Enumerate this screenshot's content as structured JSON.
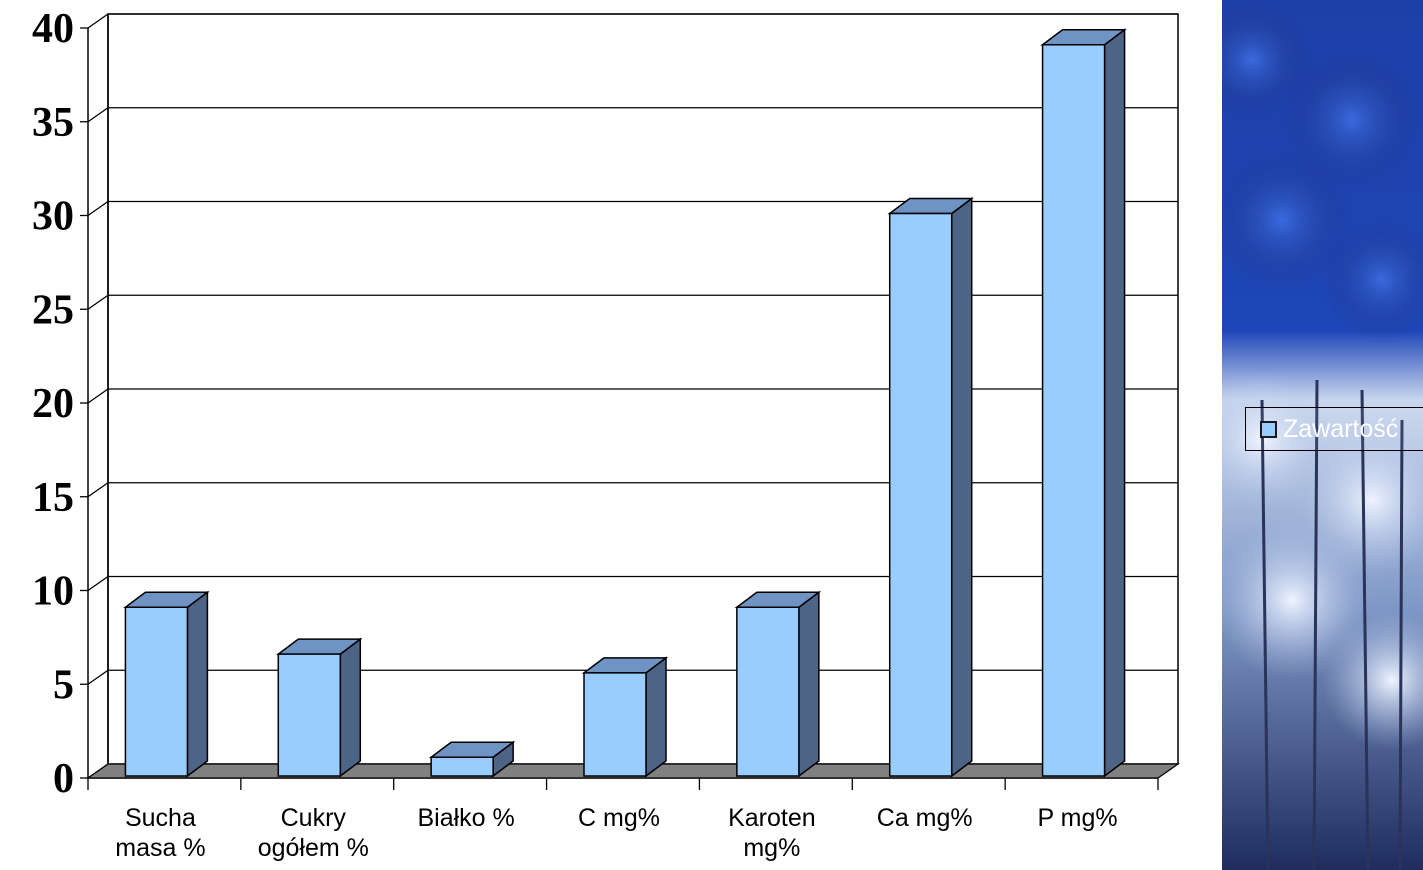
{
  "chart_data": {
    "type": "bar",
    "categories": [
      "Sucha masa %",
      "Cukry ogółem %",
      "Białko %",
      "C mg%",
      "Karoten mg%",
      "Ca mg%",
      "P mg%"
    ],
    "category_lines": [
      [
        "Sucha",
        "masa %"
      ],
      [
        "Cukry",
        "ogółem %"
      ],
      [
        "Białko %"
      ],
      [
        "C mg%"
      ],
      [
        "Karoten",
        "mg%"
      ],
      [
        "Ca mg%"
      ],
      [
        "P mg%"
      ]
    ],
    "series": [
      {
        "name": "Zawartość",
        "values": [
          9,
          6.5,
          1,
          5.5,
          9,
          30,
          39
        ]
      }
    ],
    "yticks": [
      "0",
      "5",
      "10",
      "15",
      "20",
      "25",
      "30",
      "35",
      "40"
    ],
    "ylim": [
      0,
      40
    ],
    "grid": true,
    "three_d": true,
    "legend_position": "right",
    "colors": {
      "bar_front": "#99ccff",
      "bar_side": "#4d6487",
      "bar_top": "#6f94c4",
      "floor": "#808080",
      "grid": "#000000"
    }
  },
  "legend": {
    "label": "Zawartość"
  },
  "photo": {
    "icon": "snowy-forest-photo"
  }
}
